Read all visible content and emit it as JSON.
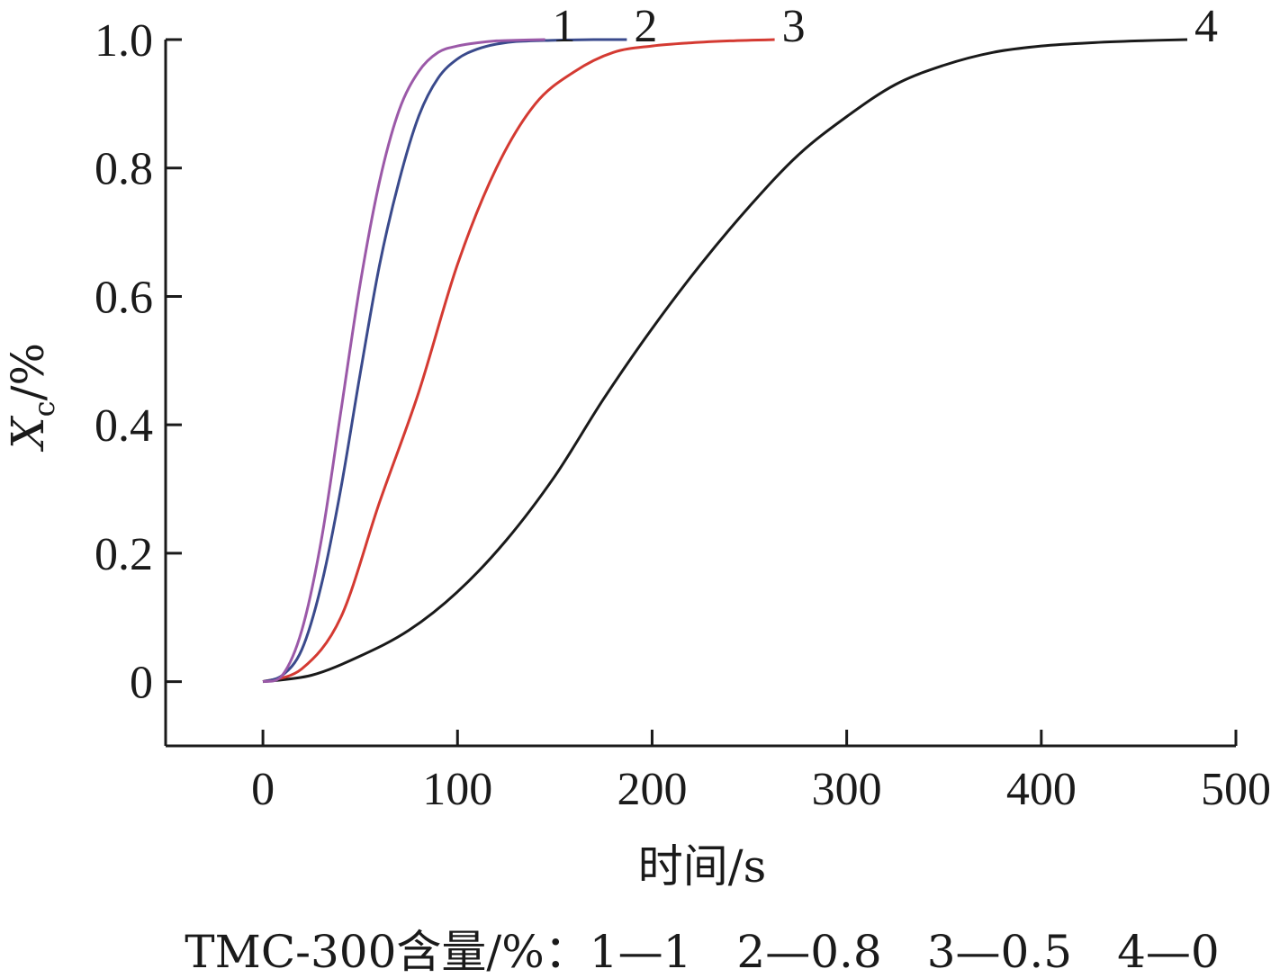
{
  "chart_data": {
    "type": "line",
    "xlabel": "时间/s",
    "ylabel_main": "X",
    "ylabel_sub": "c",
    "ylabel_unit": "/%",
    "xlim": [
      -50,
      500
    ],
    "ylim": [
      -0.1,
      1.0
    ],
    "x_ticks": [
      0,
      100,
      200,
      300,
      400,
      500
    ],
    "x_tick_labels": [
      "0",
      "100",
      "200",
      "300",
      "400",
      "500"
    ],
    "y_ticks": [
      0,
      0.2,
      0.4,
      0.6,
      0.8,
      1.0
    ],
    "y_tick_labels": [
      "0",
      "0.2",
      "0.4",
      "0.6",
      "0.8",
      "1.0"
    ],
    "grid": false,
    "legend": "bottom caption",
    "caption": "TMC-300含量/%：1—1　2—0.8　3—0.5　4—0",
    "series": [
      {
        "name": "1",
        "color": "#9b59a8",
        "x": [
          0,
          10,
          20,
          30,
          40,
          50,
          60,
          70,
          80,
          90,
          100,
          110,
          120,
          130,
          145
        ],
        "values": [
          0,
          0.01,
          0.08,
          0.22,
          0.42,
          0.62,
          0.78,
          0.89,
          0.95,
          0.98,
          0.99,
          0.995,
          0.998,
          0.999,
          1.0
        ]
      },
      {
        "name": "2",
        "color": "#3a4a8c",
        "x": [
          0,
          10,
          20,
          30,
          40,
          50,
          60,
          70,
          80,
          90,
          100,
          110,
          120,
          130,
          150,
          170,
          187
        ],
        "values": [
          0,
          0.01,
          0.05,
          0.15,
          0.3,
          0.48,
          0.65,
          0.78,
          0.88,
          0.94,
          0.97,
          0.985,
          0.993,
          0.997,
          0.999,
          1.0,
          1.0
        ]
      },
      {
        "name": "3",
        "color": "#d43a32",
        "x": [
          0,
          20,
          40,
          60,
          80,
          100,
          120,
          140,
          160,
          180,
          200,
          220,
          240,
          263
        ],
        "values": [
          0,
          0.02,
          0.1,
          0.28,
          0.45,
          0.65,
          0.8,
          0.9,
          0.95,
          0.98,
          0.99,
          0.995,
          0.998,
          1.0
        ]
      },
      {
        "name": "4",
        "color": "#1a1a1a",
        "x": [
          0,
          25,
          50,
          75,
          100,
          125,
          150,
          175,
          200,
          225,
          250,
          275,
          300,
          325,
          350,
          375,
          400,
          425,
          450,
          475
        ],
        "values": [
          0,
          0.01,
          0.04,
          0.08,
          0.14,
          0.22,
          0.32,
          0.44,
          0.55,
          0.65,
          0.74,
          0.82,
          0.88,
          0.93,
          0.96,
          0.98,
          0.99,
          0.995,
          0.998,
          1.0
        ]
      }
    ]
  }
}
